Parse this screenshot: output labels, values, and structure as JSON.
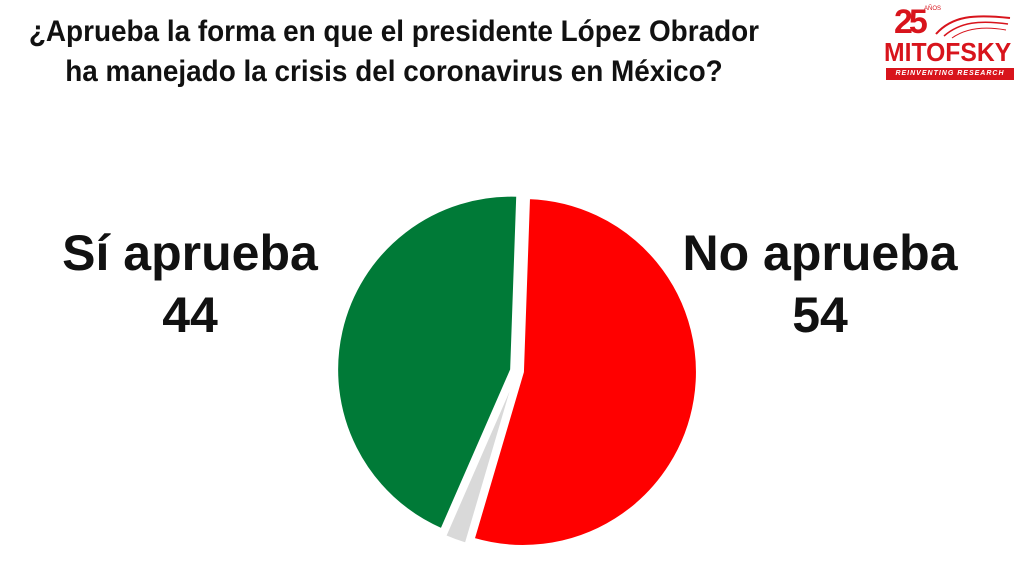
{
  "title": {
    "line1": "¿Aprueba la forma en que el presidente López Obrador",
    "line2": "ha manejado la crisis del coronavirus en México?"
  },
  "logo": {
    "number": "25",
    "years": "AÑOS",
    "brand": "MITOFSKY",
    "tagline": "REINVENTING RESEARCH"
  },
  "chart_data": {
    "type": "pie",
    "title": "¿Aprueba la forma en que el presidente López Obrador ha manejado la crisis del coronavirus en México?",
    "slices": [
      {
        "label": "No aprueba",
        "value": 54,
        "color": "#ff0000"
      },
      {
        "label": "",
        "value": 2,
        "color": "#d9d9d9"
      },
      {
        "label": "Sí aprueba",
        "value": 44,
        "color": "#007a37"
      }
    ],
    "value_labels": {
      "si": {
        "name": "Sí aprueba",
        "value": "44"
      },
      "no": {
        "name": "No aprueba",
        "value": "54"
      }
    },
    "legend": "none"
  }
}
